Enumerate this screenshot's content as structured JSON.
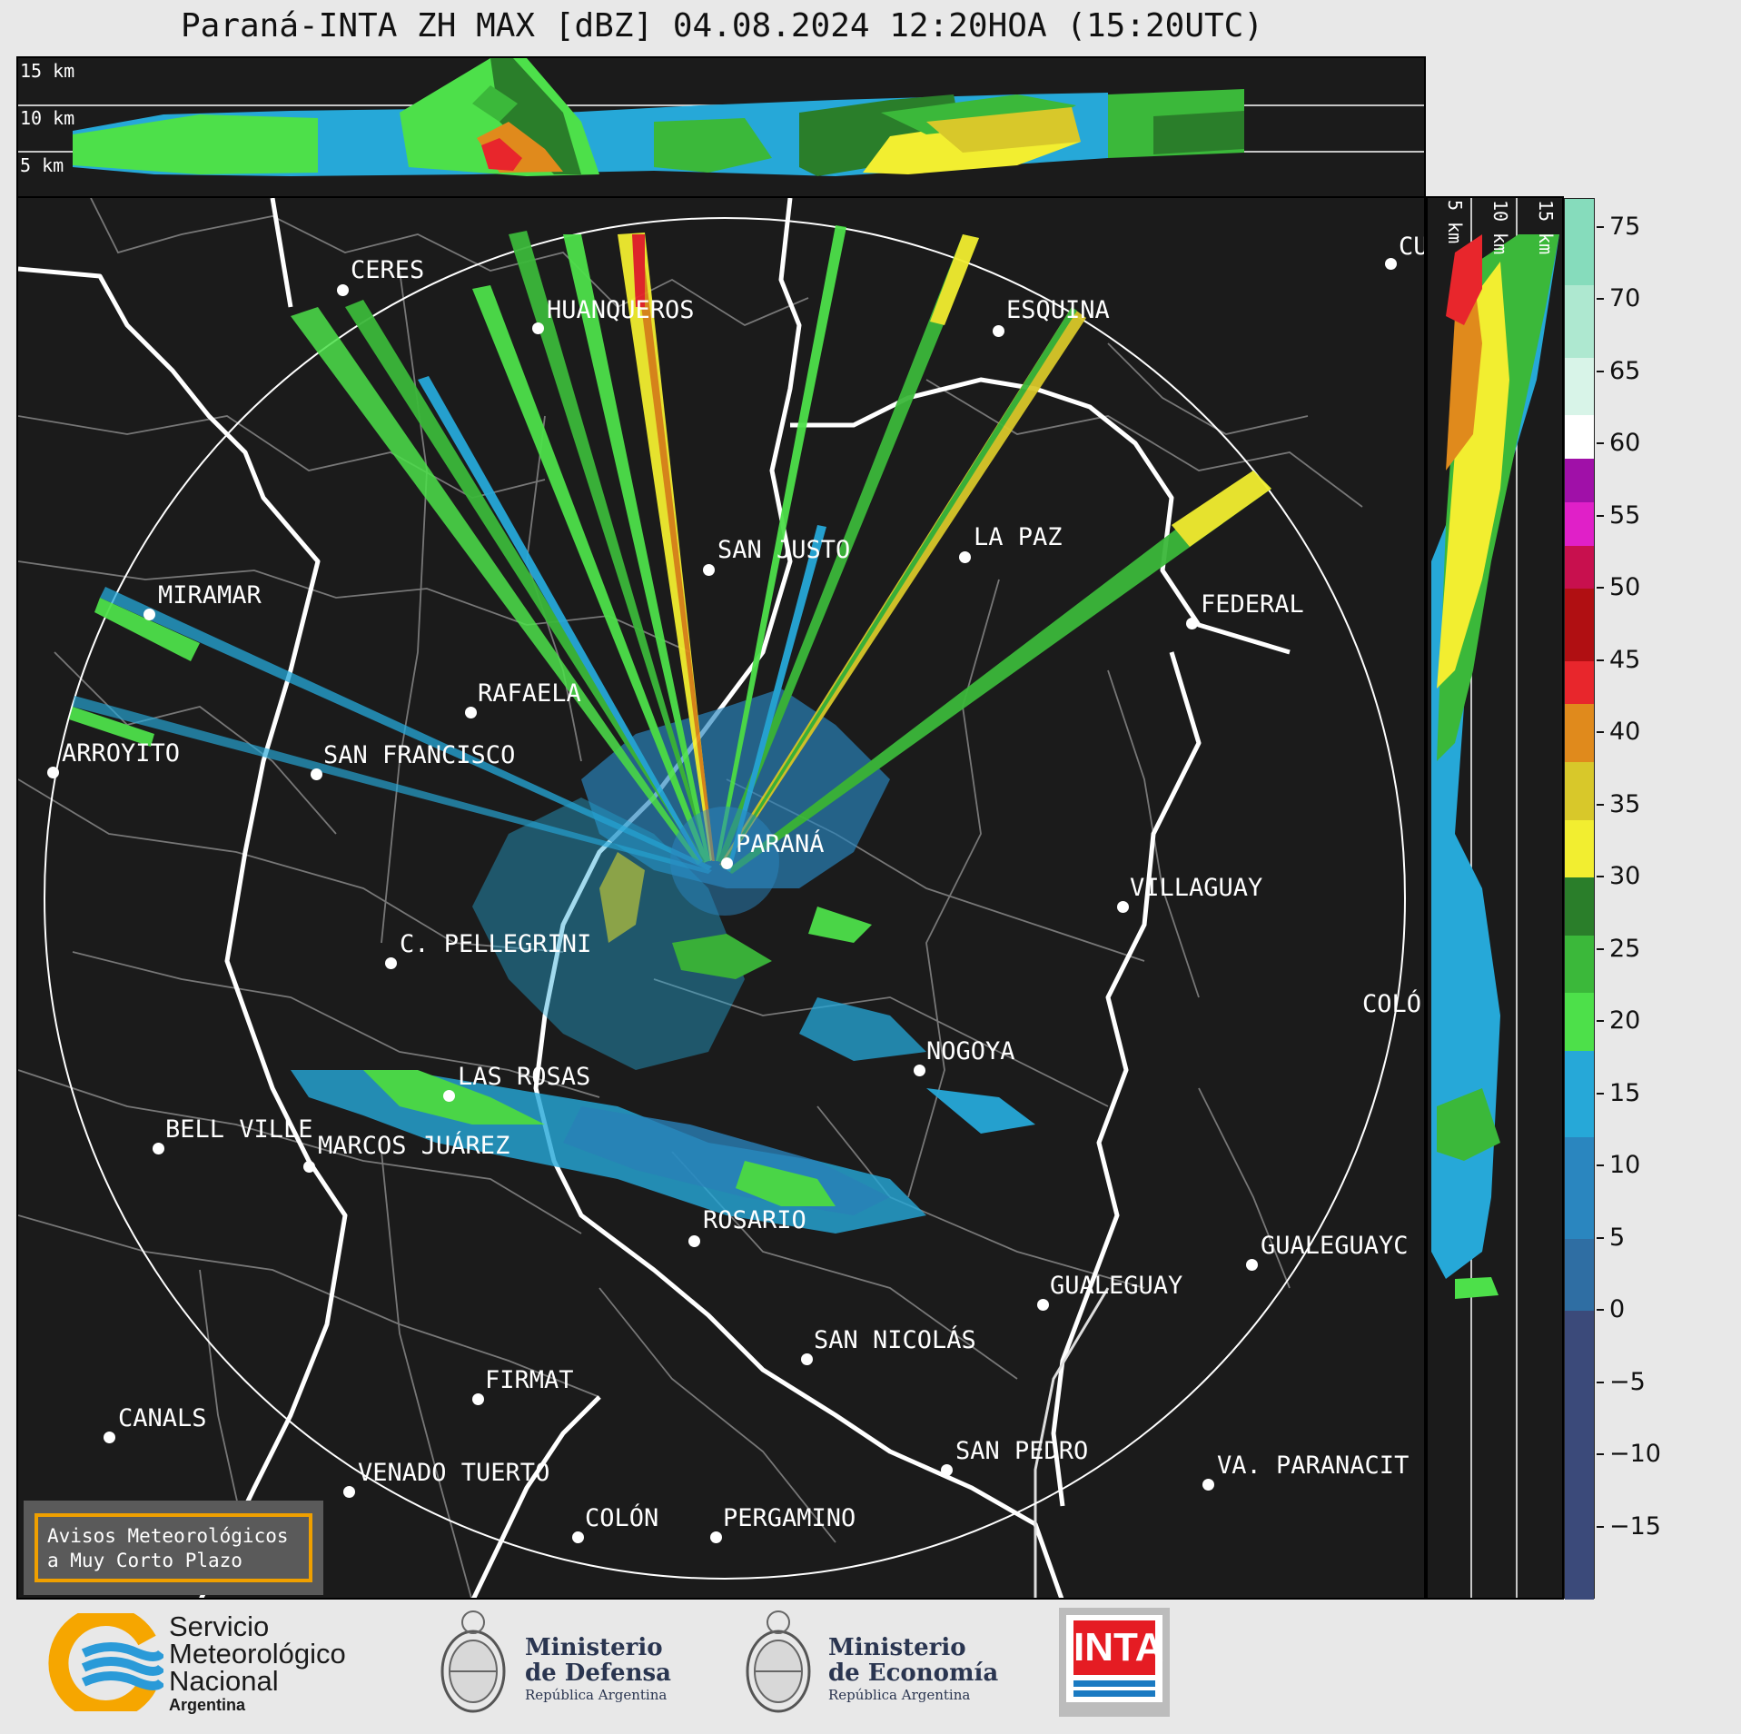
{
  "title": "Paraná-INTA ZH MAX [dBZ] 04.08.2024 12:20HOA (15:20UTC)",
  "top_panel": {
    "height_labels": [
      "15 km",
      "10 km",
      "5 km"
    ]
  },
  "side_panel": {
    "height_labels": [
      "5 km",
      "10 km",
      "15 km"
    ]
  },
  "cities": [
    {
      "name": "CERES",
      "id": "ceres"
    },
    {
      "name": "HUANQUEROS",
      "id": "huanqueros"
    },
    {
      "name": "ESQUINA",
      "id": "esquina"
    },
    {
      "name": "CU",
      "id": "curuzu"
    },
    {
      "name": "SAN JUSTO",
      "id": "san-justo"
    },
    {
      "name": "LA PAZ",
      "id": "la-paz"
    },
    {
      "name": "MIRAMAR",
      "id": "miramar"
    },
    {
      "name": "FEDERAL",
      "id": "federal"
    },
    {
      "name": "RAFAELA",
      "id": "rafaela"
    },
    {
      "name": "ARROYITO",
      "id": "arroyito"
    },
    {
      "name": "SAN FRANCISCO",
      "id": "san-francisco"
    },
    {
      "name": "PARANÁ",
      "id": "parana"
    },
    {
      "name": "VILLAGUAY",
      "id": "villaguay"
    },
    {
      "name": "C. PELLEGRINI",
      "id": "c-pellegrini"
    },
    {
      "name": "COLÓ",
      "id": "colon-er"
    },
    {
      "name": "NOGOYA",
      "id": "nogoya"
    },
    {
      "name": "LAS ROSAS",
      "id": "las-rosas"
    },
    {
      "name": "BELL VILLE",
      "id": "bell-ville"
    },
    {
      "name": "MARCOS JUÁREZ",
      "id": "marcos-juarez"
    },
    {
      "name": "ROSARIO",
      "id": "rosario"
    },
    {
      "name": "GUALEGUAYC",
      "id": "gualeguaychu"
    },
    {
      "name": "GUALEGUAY",
      "id": "gualeguay"
    },
    {
      "name": "SAN NICOLÁS",
      "id": "san-nicolas"
    },
    {
      "name": "FIRMAT",
      "id": "firmat"
    },
    {
      "name": "CANALS",
      "id": "canals"
    },
    {
      "name": "SAN PEDRO",
      "id": "san-pedro"
    },
    {
      "name": "VENADO TUERTO",
      "id": "venado-tuerto"
    },
    {
      "name": "VA. PARANACIT",
      "id": "va-paranacito"
    },
    {
      "name": "COLÓN",
      "id": "colon-ba"
    },
    {
      "name": "PERGAMINO",
      "id": "pergamino"
    }
  ],
  "colorbar": {
    "unit": "dBZ",
    "min": -20,
    "max": 77,
    "tick_labels": [
      "75",
      "70",
      "65",
      "60",
      "55",
      "50",
      "45",
      "40",
      "35",
      "30",
      "25",
      "20",
      "15",
      "10",
      "5",
      "0",
      "−5",
      "−10",
      "−15"
    ],
    "tick_values": [
      75,
      70,
      65,
      60,
      55,
      50,
      45,
      40,
      35,
      30,
      25,
      20,
      15,
      10,
      5,
      0,
      -5,
      -10,
      -15
    ],
    "bands": [
      {
        "from": -20,
        "to": 0,
        "color": "#3b4a7a"
      },
      {
        "from": 0,
        "to": 5,
        "color": "#2f6ea3"
      },
      {
        "from": 5,
        "to": 12,
        "color": "#2a86bf"
      },
      {
        "from": 12,
        "to": 18,
        "color": "#26a8d8"
      },
      {
        "from": 18,
        "to": 22,
        "color": "#4de04a"
      },
      {
        "from": 22,
        "to": 26,
        "color": "#3bb83a"
      },
      {
        "from": 26,
        "to": 30,
        "color": "#2a7e2a"
      },
      {
        "from": 30,
        "to": 34,
        "color": "#f2ee30"
      },
      {
        "from": 34,
        "to": 38,
        "color": "#d8c82a"
      },
      {
        "from": 38,
        "to": 42,
        "color": "#e08a1c"
      },
      {
        "from": 42,
        "to": 45,
        "color": "#e8262c"
      },
      {
        "from": 45,
        "to": 50,
        "color": "#b00f12"
      },
      {
        "from": 50,
        "to": 53,
        "color": "#c8104e"
      },
      {
        "from": 53,
        "to": 56,
        "color": "#e020c8"
      },
      {
        "from": 56,
        "to": 59,
        "color": "#a010a8"
      },
      {
        "from": 59,
        "to": 62,
        "color": "#ffffff"
      },
      {
        "from": 62,
        "to": 66,
        "color": "#d8f4e8"
      },
      {
        "from": 66,
        "to": 71,
        "color": "#aee8d0"
      },
      {
        "from": 71,
        "to": 77,
        "color": "#86dcbc"
      }
    ]
  },
  "alert": {
    "line1": "Avisos Meteorológicos",
    "line2": "a Muy Corto Plazo"
  },
  "logos": {
    "smn": {
      "line1": "Servicio",
      "line2": "Meteorológico",
      "line3": "Nacional",
      "line4": "Argentina"
    },
    "defensa": {
      "line1": "Ministerio",
      "line2": "de Defensa",
      "line3": "República Argentina"
    },
    "economia": {
      "line1": "Ministerio",
      "line2": "de Economía",
      "line3": "República Argentina"
    },
    "inta": {
      "word": "INTA"
    }
  }
}
